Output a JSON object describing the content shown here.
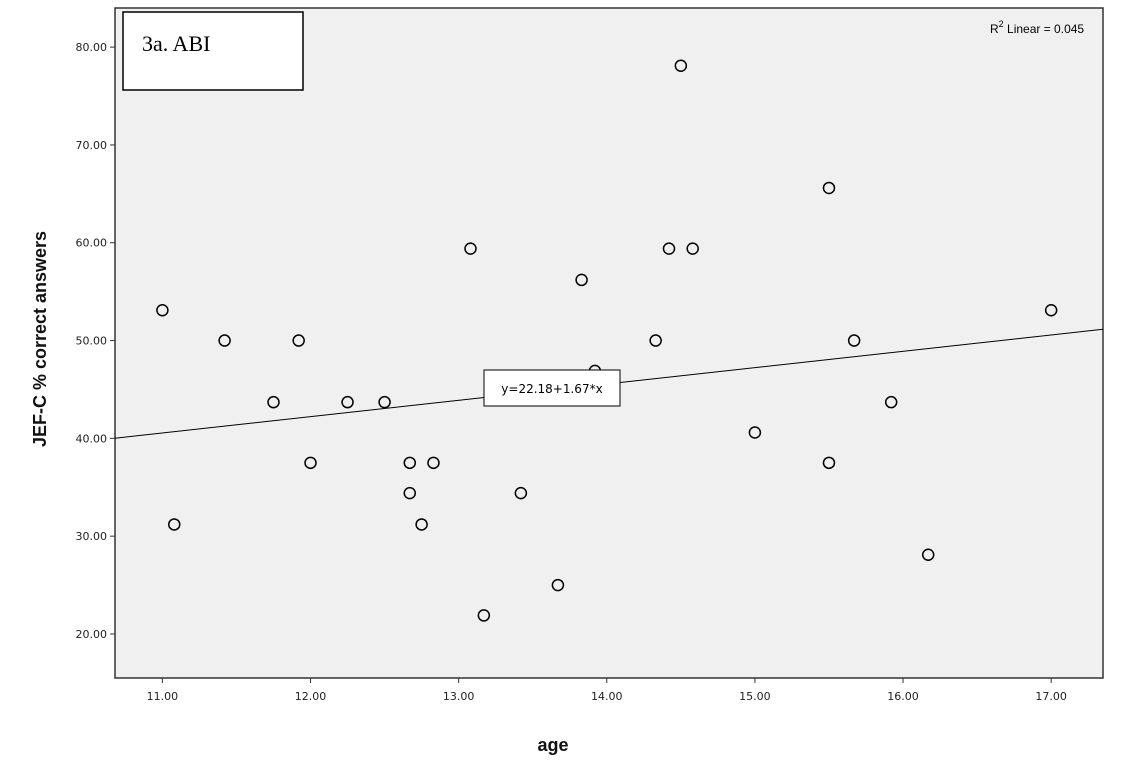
{
  "chart_data": {
    "type": "scatter",
    "title": "3a. ABI",
    "xlabel": "age",
    "ylabel": "JEF-C % correct answers",
    "xlim": [
      10.68,
      17.35
    ],
    "ylim": [
      15.5,
      84
    ],
    "x_ticks": [
      "11.00",
      "12.00",
      "13.00",
      "14.00",
      "15.00",
      "16.00",
      "17.00"
    ],
    "x_tick_values": [
      11,
      12,
      13,
      14,
      15,
      16,
      17
    ],
    "y_ticks": [
      "20.00",
      "30.00",
      "40.00",
      "50.00",
      "60.00",
      "70.00",
      "80.00"
    ],
    "y_tick_values": [
      20,
      30,
      40,
      50,
      60,
      70,
      80
    ],
    "grid": false,
    "background": "#f0f0f0",
    "points": [
      {
        "x": 11.0,
        "y": 53.1
      },
      {
        "x": 11.08,
        "y": 31.2
      },
      {
        "x": 11.42,
        "y": 50.0
      },
      {
        "x": 11.75,
        "y": 43.7
      },
      {
        "x": 11.92,
        "y": 50.0
      },
      {
        "x": 12.0,
        "y": 37.5
      },
      {
        "x": 12.25,
        "y": 43.7
      },
      {
        "x": 12.5,
        "y": 43.7
      },
      {
        "x": 12.67,
        "y": 37.5
      },
      {
        "x": 12.67,
        "y": 34.4
      },
      {
        "x": 12.75,
        "y": 31.2
      },
      {
        "x": 12.83,
        "y": 37.5
      },
      {
        "x": 13.08,
        "y": 59.4
      },
      {
        "x": 13.17,
        "y": 21.9
      },
      {
        "x": 13.42,
        "y": 34.4
      },
      {
        "x": 13.67,
        "y": 25.0
      },
      {
        "x": 13.83,
        "y": 56.2
      },
      {
        "x": 13.92,
        "y": 46.9
      },
      {
        "x": 14.33,
        "y": 50.0
      },
      {
        "x": 14.42,
        "y": 59.4
      },
      {
        "x": 14.5,
        "y": 78.1
      },
      {
        "x": 14.58,
        "y": 59.4
      },
      {
        "x": 15.0,
        "y": 40.6
      },
      {
        "x": 15.5,
        "y": 65.6
      },
      {
        "x": 15.5,
        "y": 37.5
      },
      {
        "x": 15.67,
        "y": 50.0
      },
      {
        "x": 15.92,
        "y": 43.7
      },
      {
        "x": 16.17,
        "y": 28.1
      },
      {
        "x": 17.0,
        "y": 53.1
      }
    ],
    "fit_line": {
      "intercept": 22.18,
      "slope": 1.67
    },
    "equation_label": "y=22.18+1.67*x",
    "r2_prefix": "R",
    "r2_sup": "2",
    "r2_suffix": " Linear = 0.045"
  }
}
